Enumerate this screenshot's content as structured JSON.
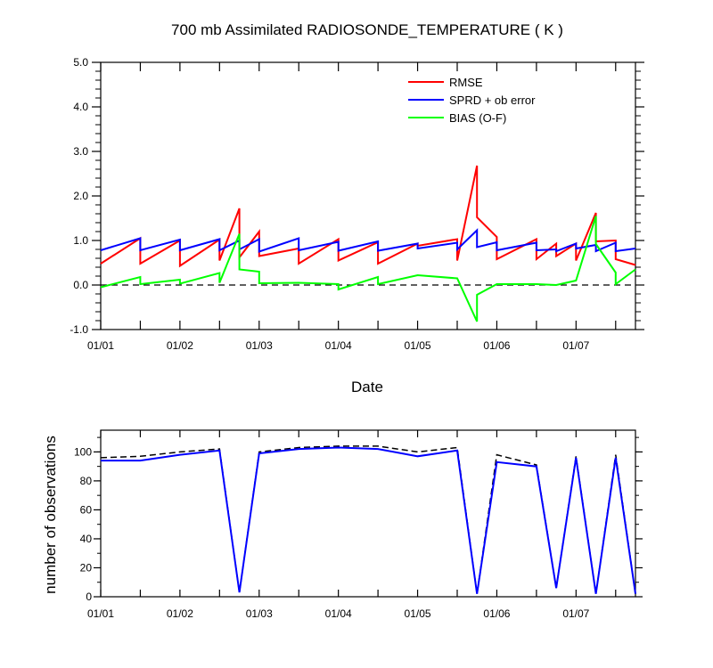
{
  "chart_data": [
    {
      "type": "line",
      "title": "700 mb Assimilated RADIOSONDE_TEMPERATURE ( K )",
      "xlabel": "Date",
      "ylabel": "",
      "xlim": [
        0,
        6.75
      ],
      "ylim": [
        -1.0,
        5.0
      ],
      "x_ticks": [
        {
          "x": 0,
          "label": "01/01"
        },
        {
          "x": 1,
          "label": "01/02"
        },
        {
          "x": 2,
          "label": "01/03"
        },
        {
          "x": 3,
          "label": "01/04"
        },
        {
          "x": 4,
          "label": "01/05"
        },
        {
          "x": 5,
          "label": "01/06"
        },
        {
          "x": 6,
          "label": "01/07"
        }
      ],
      "y_ticks": [
        {
          "y": 5.0,
          "label": "5.0"
        },
        {
          "y": 4.0,
          "label": "4.0"
        },
        {
          "y": 3.0,
          "label": "3.0"
        },
        {
          "y": 2.0,
          "label": "2.0"
        },
        {
          "y": 1.0,
          "label": "1.0"
        },
        {
          "y": 0.0,
          "label": "0.0"
        },
        {
          "y": -1.0,
          "label": "-1.0"
        }
      ],
      "zero_line": true,
      "legend_position": "top-right",
      "series": [
        {
          "name": "RMSE",
          "color": "#ff0000",
          "points": [
            [
              0.0,
              0.48
            ],
            [
              0.5,
              1.05
            ],
            [
              0.5,
              0.48
            ],
            [
              1.0,
              1.0
            ],
            [
              1.0,
              0.43
            ],
            [
              1.5,
              1.02
            ],
            [
              1.5,
              0.55
            ],
            [
              1.75,
              1.72
            ],
            [
              1.75,
              0.62
            ],
            [
              2.0,
              1.2
            ],
            [
              2.0,
              0.65
            ],
            [
              2.5,
              0.82
            ],
            [
              2.5,
              0.48
            ],
            [
              3.0,
              1.03
            ],
            [
              3.0,
              0.55
            ],
            [
              3.5,
              0.96
            ],
            [
              3.5,
              0.48
            ],
            [
              4.0,
              0.93
            ],
            [
              4.0,
              0.88
            ],
            [
              4.5,
              1.03
            ],
            [
              4.5,
              0.55
            ],
            [
              4.75,
              2.68
            ],
            [
              4.75,
              1.52
            ],
            [
              5.0,
              1.08
            ],
            [
              5.0,
              0.58
            ],
            [
              5.5,
              1.03
            ],
            [
              5.5,
              0.58
            ],
            [
              5.75,
              0.93
            ],
            [
              5.75,
              0.65
            ],
            [
              6.0,
              0.93
            ],
            [
              6.0,
              0.55
            ],
            [
              6.25,
              1.62
            ],
            [
              6.25,
              0.98
            ],
            [
              6.5,
              1.0
            ],
            [
              6.5,
              0.58
            ],
            [
              6.75,
              0.45
            ]
          ]
        },
        {
          "name": "SPRD + ob error",
          "color": "#0000ff",
          "points": [
            [
              0.0,
              0.78
            ],
            [
              0.5,
              1.05
            ],
            [
              0.5,
              0.78
            ],
            [
              1.0,
              1.02
            ],
            [
              1.0,
              0.78
            ],
            [
              1.5,
              1.03
            ],
            [
              1.5,
              0.78
            ],
            [
              1.75,
              1.0
            ],
            [
              1.75,
              0.8
            ],
            [
              2.0,
              1.03
            ],
            [
              2.0,
              0.75
            ],
            [
              2.5,
              1.05
            ],
            [
              2.5,
              0.78
            ],
            [
              3.0,
              0.97
            ],
            [
              3.0,
              0.77
            ],
            [
              3.5,
              0.98
            ],
            [
              3.5,
              0.77
            ],
            [
              4.0,
              0.93
            ],
            [
              4.0,
              0.82
            ],
            [
              4.5,
              0.95
            ],
            [
              4.5,
              0.8
            ],
            [
              4.75,
              1.23
            ],
            [
              4.75,
              0.85
            ],
            [
              5.0,
              0.96
            ],
            [
              5.0,
              0.78
            ],
            [
              5.5,
              0.95
            ],
            [
              5.5,
              0.78
            ],
            [
              5.75,
              0.8
            ],
            [
              5.75,
              0.76
            ],
            [
              6.0,
              0.93
            ],
            [
              6.0,
              0.82
            ],
            [
              6.25,
              0.9
            ],
            [
              6.25,
              0.76
            ],
            [
              6.5,
              0.95
            ],
            [
              6.5,
              0.76
            ],
            [
              6.75,
              0.82
            ]
          ]
        },
        {
          "name": "BIAS (O-F)",
          "color": "#00ff00",
          "points": [
            [
              0.0,
              -0.05
            ],
            [
              0.5,
              0.18
            ],
            [
              0.5,
              0.02
            ],
            [
              1.0,
              0.12
            ],
            [
              1.0,
              0.03
            ],
            [
              1.5,
              0.27
            ],
            [
              1.5,
              0.05
            ],
            [
              1.75,
              1.15
            ],
            [
              1.75,
              0.35
            ],
            [
              2.0,
              0.3
            ],
            [
              2.0,
              0.04
            ],
            [
              2.5,
              0.05
            ],
            [
              2.5,
              0.05
            ],
            [
              3.0,
              0.02
            ],
            [
              3.0,
              -0.1
            ],
            [
              3.5,
              0.18
            ],
            [
              3.5,
              0.02
            ],
            [
              4.0,
              0.22
            ],
            [
              4.0,
              0.22
            ],
            [
              4.5,
              0.15
            ],
            [
              4.5,
              0.15
            ],
            [
              4.75,
              -0.82
            ],
            [
              4.75,
              -0.22
            ],
            [
              5.0,
              0.02
            ],
            [
              5.0,
              0.02
            ],
            [
              5.5,
              0.02
            ],
            [
              5.5,
              0.02
            ],
            [
              5.75,
              0.0
            ],
            [
              5.75,
              0.0
            ],
            [
              6.0,
              0.1
            ],
            [
              6.0,
              0.1
            ],
            [
              6.25,
              1.55
            ],
            [
              6.25,
              0.92
            ],
            [
              6.5,
              0.28
            ],
            [
              6.5,
              0.02
            ],
            [
              6.75,
              0.35
            ]
          ]
        }
      ]
    },
    {
      "type": "line",
      "title": "",
      "xlabel": "",
      "ylabel": "number of observations",
      "xlim": [
        0,
        6.75
      ],
      "ylim": [
        0,
        115
      ],
      "x_ticks": [
        {
          "x": 0,
          "label": "01/01"
        },
        {
          "x": 1,
          "label": "01/02"
        },
        {
          "x": 2,
          "label": "01/03"
        },
        {
          "x": 3,
          "label": "01/04"
        },
        {
          "x": 4,
          "label": "01/05"
        },
        {
          "x": 5,
          "label": "01/06"
        },
        {
          "x": 6,
          "label": "01/07"
        }
      ],
      "y_ticks": [
        {
          "y": 100,
          "label": "100"
        },
        {
          "y": 80,
          "label": "80"
        },
        {
          "y": 60,
          "label": "60"
        },
        {
          "y": 40,
          "label": "40"
        },
        {
          "y": 20,
          "label": "20"
        },
        {
          "y": 0,
          "label": "0"
        }
      ],
      "series": [
        {
          "color": "#000000",
          "dash": "dashed",
          "points": [
            [
              0.0,
              96
            ],
            [
              0.5,
              97
            ],
            [
              1.0,
              100
            ],
            [
              1.5,
              102
            ],
            [
              1.75,
              3
            ],
            [
              2.0,
              100
            ],
            [
              2.5,
              103
            ],
            [
              3.0,
              104
            ],
            [
              3.5,
              104
            ],
            [
              4.0,
              100
            ],
            [
              4.5,
              103
            ],
            [
              4.75,
              2
            ],
            [
              5.0,
              98
            ],
            [
              5.5,
              91
            ],
            [
              5.75,
              6
            ],
            [
              6.0,
              97
            ],
            [
              6.25,
              2
            ],
            [
              6.5,
              98
            ],
            [
              6.75,
              2
            ]
          ]
        },
        {
          "color": "#0000ff",
          "dash": "solid",
          "points": [
            [
              0.0,
              94
            ],
            [
              0.5,
              94
            ],
            [
              1.0,
              98
            ],
            [
              1.5,
              101
            ],
            [
              1.75,
              3
            ],
            [
              2.0,
              99
            ],
            [
              2.5,
              102
            ],
            [
              3.0,
              103
            ],
            [
              3.5,
              102
            ],
            [
              4.0,
              97
            ],
            [
              4.5,
              101
            ],
            [
              4.75,
              2
            ],
            [
              5.0,
              93
            ],
            [
              5.5,
              90
            ],
            [
              5.75,
              6
            ],
            [
              6.0,
              96
            ],
            [
              6.25,
              2
            ],
            [
              6.5,
              96
            ],
            [
              6.75,
              2
            ]
          ]
        }
      ]
    }
  ]
}
